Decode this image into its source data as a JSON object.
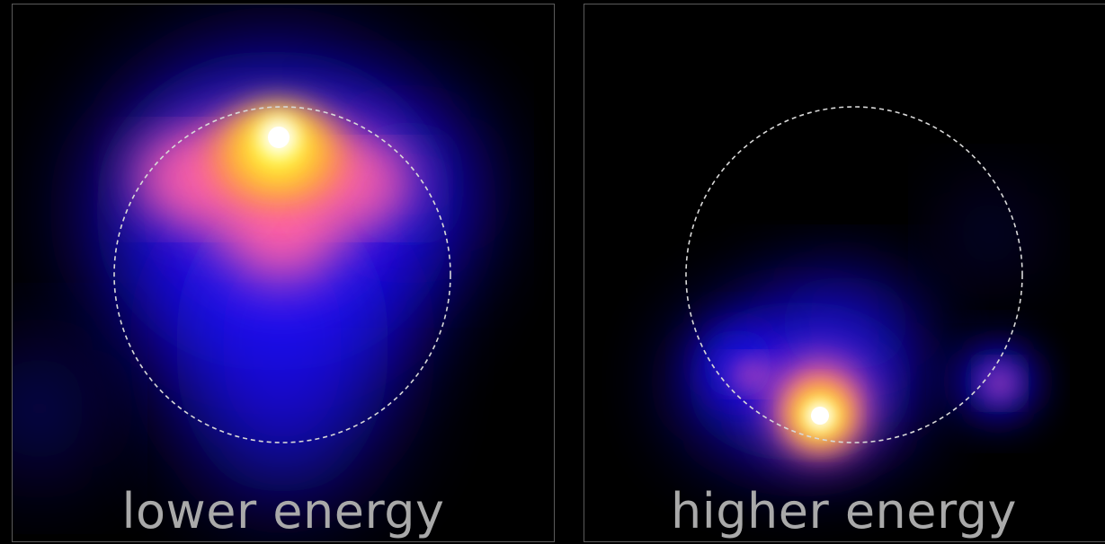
{
  "panels": [
    {
      "id": "lower",
      "caption": "lower energy"
    },
    {
      "id": "higher",
      "caption": "higher energy"
    }
  ],
  "colors": {
    "background": "#000000",
    "frame": "#5a5a5a",
    "caption": "#a9a9a9",
    "halo_blue": "#1a10ff",
    "glow_magenta": "#ff5fa8",
    "glow_orange": "#ff9a3a",
    "glow_yellow": "#ffff30",
    "core_white": "#ffffff",
    "circle_outline": "#d8d8d8"
  },
  "colormap": "black-blue-magenta-yellow-white"
}
